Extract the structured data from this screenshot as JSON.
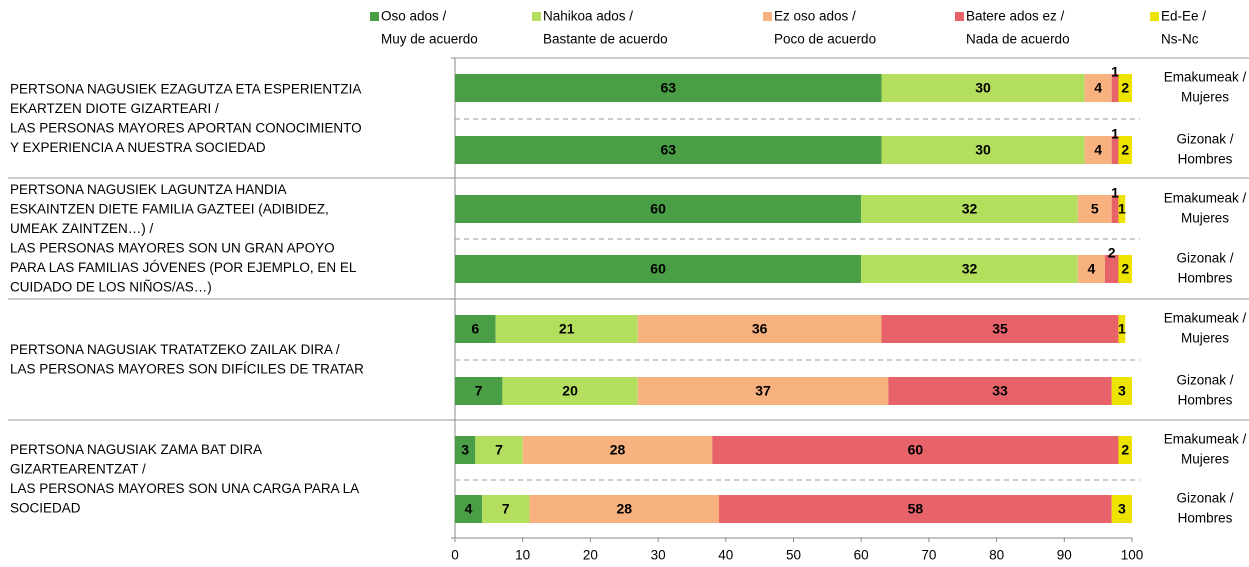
{
  "chart_data": {
    "type": "stacked-barh",
    "groups": [
      {
        "label": [
          "PERTSONA NAGUSIEK EZAGUTZA ETA ESPERIENTZIA",
          "EKARTZEN DIOTE GIZARTEARI /",
          "LAS PERSONAS MAYORES APORTAN CONOCIMIENTO",
          "Y EXPERIENCIA A NUESTRA SOCIEDAD"
        ]
      },
      {
        "label": [
          "PERTSONA NAGUSIEK LAGUNTZA HANDIA",
          "ESKAINTZEN DIETE FAMILIA GAZTEEI (ADIBIDEZ,",
          "UMEAK ZAINTZEN…) /",
          "LAS PERSONAS MAYORES SON UN GRAN APOYO",
          "PARA LAS FAMILIAS JÓVENES (POR EJEMPLO, EN EL",
          "CUIDADO DE LOS NIÑOS/AS…)"
        ]
      },
      {
        "label": [
          "PERTSONA NAGUSIAK TRATATZEKO ZAILAK DIRA /",
          "LAS PERSONAS MAYORES SON DIFÍCILES DE TRATAR"
        ]
      },
      {
        "label": [
          "PERTSONA NAGUSIAK ZAMA BAT DIRA",
          "GIZARTEARENTZAT  /",
          "LAS PERSONAS MAYORES SON UNA CARGA PARA LA",
          "SOCIEDAD"
        ]
      }
    ],
    "categories": [
      [
        "Emakumeak /",
        "Mujeres"
      ],
      [
        "Gizonak /",
        "Hombres"
      ],
      [
        "Emakumeak /",
        "Mujeres"
      ],
      [
        "Gizonak /",
        "Hombres"
      ],
      [
        "Emakumeak /",
        "Mujeres"
      ],
      [
        "Gizonak /",
        "Hombres"
      ],
      [
        "Emakumeak /",
        "Mujeres"
      ],
      [
        "Gizonak /",
        "Hombres"
      ]
    ],
    "series": [
      {
        "name": [
          "Oso ados /",
          "Muy de acuerdo"
        ],
        "color": "#4a9e45",
        "values": [
          63,
          63,
          60,
          60,
          6,
          7,
          3,
          4
        ]
      },
      {
        "name": [
          "Nahikoa ados /",
          "Bastante de acuerdo"
        ],
        "color": "#b4df5e",
        "values": [
          30,
          30,
          32,
          32,
          21,
          20,
          7,
          7
        ]
      },
      {
        "name": [
          "Ez oso ados /",
          "Poco de acuerdo"
        ],
        "color": "#f8b27f",
        "values": [
          4,
          4,
          5,
          4,
          36,
          37,
          28,
          28
        ]
      },
      {
        "name": [
          "Batere ados ez /",
          "Nada de acuerdo"
        ],
        "color": "#e8626a",
        "values": [
          1,
          1,
          1,
          2,
          35,
          33,
          60,
          58
        ]
      },
      {
        "name": [
          "Ed-Ee /",
          "Ns-Nc"
        ],
        "color": "#ece400",
        "values": [
          2,
          2,
          1,
          2,
          1,
          3,
          2,
          3
        ]
      }
    ],
    "xlim": [
      0,
      100
    ],
    "xticks": [
      0,
      10,
      20,
      30,
      40,
      50,
      60,
      70,
      80,
      90,
      100
    ]
  }
}
